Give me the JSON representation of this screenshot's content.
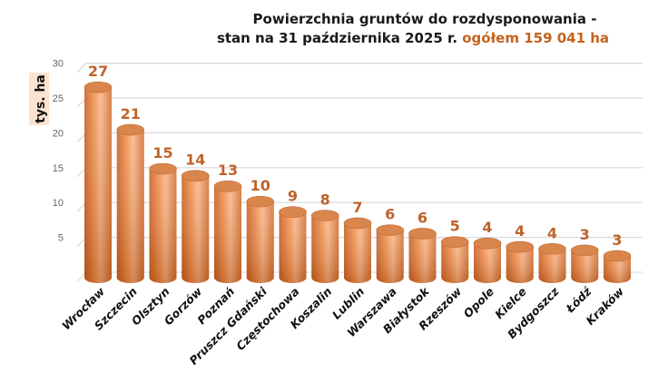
{
  "chart_data": {
    "type": "bar",
    "title_line1": "Powierzchnia gruntów do rozdysponowania -",
    "title_line2": "stan na 31 października 2025 r.",
    "title_highlight": "ogółem 159 041 ha",
    "ylabel": "tys. ha",
    "xlabel": "",
    "ylim": [
      0,
      30
    ],
    "yticks": [
      5,
      10,
      15,
      20,
      25,
      30
    ],
    "grid": true,
    "categories": [
      "Wrocław",
      "Szczecin",
      "Olsztyn",
      "Gorzów",
      "Poznań",
      "Pruszcz Gdański",
      "Częstochowa",
      "Koszalin",
      "Lublin",
      "Warszawa",
      "Białystok",
      "Rzeszów",
      "Opole",
      "Kielce",
      "Bydgoszcz",
      "Łódź",
      "Kraków"
    ],
    "values": [
      26.8,
      20.7,
      15.1,
      14.1,
      12.6,
      10.4,
      8.9,
      8.4,
      7.3,
      6.3,
      5.8,
      4.6,
      4.4,
      3.9,
      3.6,
      3.4,
      2.6
    ],
    "labels": [
      "27",
      "21",
      "15",
      "14",
      "13",
      "10",
      "9",
      "8",
      "7",
      "6",
      "6",
      "5",
      "4",
      "4",
      "4",
      "3",
      "3"
    ],
    "colors": {
      "bar": "#e9752f",
      "bar_light": "#f8b98a",
      "label": "#c0622a",
      "grid": "#d9d9d9"
    }
  }
}
